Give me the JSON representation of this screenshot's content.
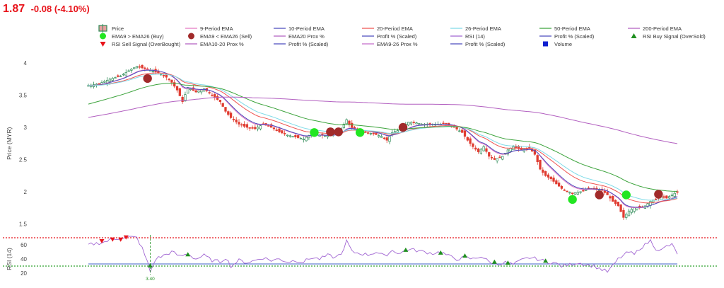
{
  "header": {
    "price": "1.87",
    "change": "-0.08 (-4.10%)"
  },
  "colors": {
    "header_red": "#e8141b",
    "candle_up": "#2e8b57",
    "candle_down": "#e03c31",
    "ema9": "#e377c2",
    "ema10": "#4b4bbd",
    "ema20": "#ef5350",
    "ema26": "#7fdbe8",
    "ema50": "#3ca33c",
    "ema200": "#b25fc0",
    "buy": "#22e622",
    "sell": "#a12a2a",
    "rsi": "#a064d2",
    "rsi_overbought": "#e8141b",
    "rsi_oversold": "#2ca02c",
    "rsi_buy_marker": "#1f8f1f",
    "rsi_sell_marker": "#e8141b",
    "rsi_mid": "#3f63c8"
  },
  "legend": [
    {
      "label": "Price",
      "icon": "candlestick-icon",
      "color": "#2e8b57"
    },
    {
      "label": "9-Period EMA",
      "icon": "line-icon",
      "color": "#e377c2"
    },
    {
      "label": "10-Period EMA",
      "icon": "line-icon",
      "color": "#4b4bbd"
    },
    {
      "label": "20-Period EMA",
      "icon": "line-icon",
      "color": "#ef5350"
    },
    {
      "label": "26-Period EMA",
      "icon": "line-icon",
      "color": "#7fdbe8"
    },
    {
      "label": "50-Period EMA",
      "icon": "line-icon",
      "color": "#3ca33c"
    },
    {
      "label": "200-Period EMA",
      "icon": "line-icon",
      "color": "#b25fc0"
    },
    {
      "label": "EMA9 > EMA26 (Buy)",
      "icon": "circle-icon",
      "color": "#22e622"
    },
    {
      "label": "EMA9 < EMA26 (Sell)",
      "icon": "circle-icon",
      "color": "#a12a2a"
    },
    {
      "label": "EMA20 Prox %",
      "icon": "line-icon",
      "color": "#b25fc0"
    },
    {
      "label": "Profit % (Scaled)",
      "icon": "line-icon",
      "color": "#4b4bbd"
    },
    {
      "label": "RSI (14)",
      "icon": "line-icon",
      "color": "#a064d2"
    },
    {
      "label": "Profit % (Scaled)",
      "icon": "line-icon",
      "color": "#4b4bbd"
    },
    {
      "label": "RSI Buy Signal (OverSold)",
      "icon": "triangle-up-icon",
      "color": "#1f8f1f"
    },
    {
      "label": "RSI Sell Signal (OverBought)",
      "icon": "triangle-down-icon",
      "color": "#e8141b"
    },
    {
      "label": "EMA10-20 Prox %",
      "icon": "line-icon",
      "color": "#b25fc0"
    },
    {
      "label": "Profit % (Scaled)",
      "icon": "line-icon",
      "color": "#4b4bbd"
    },
    {
      "label": "EMA9-26 Prox %",
      "icon": "line-icon",
      "color": "#c46cc9"
    },
    {
      "label": "Profit % (Scaled)",
      "icon": "line-icon",
      "color": "#4b4bbd"
    },
    {
      "label": "Volume",
      "icon": "square-icon",
      "color": "#1020d0"
    }
  ],
  "chart_data": [
    {
      "type": "line",
      "ylabel": "Price (MYR)",
      "ylim": [
        1.35,
        4.1
      ],
      "yticks": [
        1.5,
        2,
        2.5,
        3,
        3.5,
        4
      ],
      "ytick_labels": [
        "1.5",
        "2",
        "2.5",
        "3",
        "3.5",
        "4"
      ],
      "x_count": 220,
      "grid": false,
      "close_anchors": [
        [
          0,
          3.65
        ],
        [
          4,
          3.68
        ],
        [
          8,
          3.75
        ],
        [
          12,
          3.8
        ],
        [
          15,
          3.88
        ],
        [
          18,
          3.95
        ],
        [
          22,
          3.9
        ],
        [
          26,
          3.85
        ],
        [
          29,
          3.78
        ],
        [
          31,
          3.7
        ],
        [
          33,
          3.58
        ],
        [
          35,
          3.4
        ],
        [
          37,
          3.62
        ],
        [
          40,
          3.55
        ],
        [
          43,
          3.6
        ],
        [
          46,
          3.5
        ],
        [
          49,
          3.4
        ],
        [
          51,
          3.25
        ],
        [
          53,
          3.15
        ],
        [
          56,
          3.05
        ],
        [
          59,
          3.0
        ],
        [
          62,
          2.98
        ],
        [
          65,
          3.05
        ],
        [
          68,
          3.0
        ],
        [
          71,
          2.93
        ],
        [
          74,
          2.88
        ],
        [
          77,
          2.85
        ],
        [
          80,
          2.82
        ],
        [
          83,
          2.9
        ],
        [
          86,
          2.88
        ],
        [
          89,
          2.87
        ],
        [
          92,
          2.9
        ],
        [
          94,
          2.98
        ],
        [
          96,
          3.12
        ],
        [
          98,
          2.98
        ],
        [
          100,
          2.93
        ],
        [
          103,
          2.92
        ],
        [
          106,
          2.9
        ],
        [
          109,
          2.86
        ],
        [
          111,
          2.8
        ],
        [
          113,
          2.92
        ],
        [
          115,
          2.95
        ],
        [
          117,
          3.02
        ],
        [
          119,
          3.08
        ],
        [
          121,
          3.08
        ],
        [
          124,
          3.05
        ],
        [
          127,
          3.05
        ],
        [
          130,
          3.05
        ],
        [
          133,
          3.05
        ],
        [
          136,
          3.0
        ],
        [
          139,
          2.92
        ],
        [
          141,
          2.8
        ],
        [
          143,
          2.7
        ],
        [
          145,
          2.62
        ],
        [
          147,
          2.7
        ],
        [
          149,
          2.55
        ],
        [
          151,
          2.5
        ],
        [
          154,
          2.55
        ],
        [
          156,
          2.65
        ],
        [
          158,
          2.7
        ],
        [
          161,
          2.65
        ],
        [
          164,
          2.68
        ],
        [
          166,
          2.58
        ],
        [
          168,
          2.35
        ],
        [
          170,
          2.25
        ],
        [
          172,
          2.2
        ],
        [
          174,
          2.12
        ],
        [
          176,
          2.05
        ],
        [
          178,
          2.0
        ],
        [
          180,
          1.98
        ],
        [
          183,
          2.0
        ],
        [
          186,
          2.05
        ],
        [
          189,
          2.03
        ],
        [
          191,
          2.02
        ],
        [
          193,
          1.95
        ],
        [
          195,
          1.85
        ],
        [
          197,
          1.78
        ],
        [
          199,
          1.6
        ],
        [
          201,
          1.7
        ],
        [
          203,
          1.75
        ],
        [
          205,
          1.75
        ],
        [
          207,
          1.78
        ],
        [
          209,
          1.85
        ],
        [
          211,
          1.88
        ],
        [
          213,
          1.92
        ],
        [
          215,
          1.9
        ],
        [
          217,
          1.95
        ],
        [
          219,
          2.0
        ]
      ],
      "buy_signals": [
        [
          84,
          2.92
        ],
        [
          101,
          2.92
        ],
        [
          180,
          1.88
        ],
        [
          200,
          1.95
        ]
      ],
      "sell_signals": [
        [
          22,
          3.76
        ],
        [
          90,
          2.93
        ],
        [
          93,
          2.93
        ],
        [
          117,
          3.0
        ],
        [
          190,
          1.95
        ],
        [
          212,
          1.96
        ]
      ],
      "series": [
        {
          "name": "9-Period EMA",
          "span": 9,
          "color_key": "ema9"
        },
        {
          "name": "10-Period EMA",
          "span": 10,
          "color_key": "ema10"
        },
        {
          "name": "20-Period EMA",
          "span": 20,
          "color_key": "ema20"
        },
        {
          "name": "26-Period EMA",
          "span": 26,
          "color_key": "ema26"
        },
        {
          "name": "50-Period EMA",
          "span": 50,
          "color_key": "ema50"
        },
        {
          "name": "200-Period EMA",
          "span": 200,
          "color_key": "ema200"
        }
      ]
    },
    {
      "type": "line",
      "ylabel": "RSI (14)",
      "ylim": [
        16,
        76
      ],
      "yticks": [
        20,
        40,
        60
      ],
      "ytick_labels": [
        "20",
        "40",
        "60"
      ],
      "overbought": 70,
      "oversold": 30,
      "mid_line": 33,
      "annotation": {
        "x": 23,
        "text": "3.40"
      },
      "rsi_anchors": [
        [
          0,
          60
        ],
        [
          3,
          62
        ],
        [
          6,
          64
        ],
        [
          9,
          68
        ],
        [
          12,
          70
        ],
        [
          15,
          71
        ],
        [
          18,
          70
        ],
        [
          20,
          55
        ],
        [
          21,
          45
        ],
        [
          22,
          35
        ],
        [
          23,
          22
        ],
        [
          25,
          40
        ],
        [
          28,
          45
        ],
        [
          31,
          50
        ],
        [
          34,
          44
        ],
        [
          37,
          47
        ],
        [
          40,
          40
        ],
        [
          43,
          45
        ],
        [
          46,
          38
        ],
        [
          49,
          36
        ],
        [
          51,
          42
        ],
        [
          53,
          30
        ],
        [
          56,
          38
        ],
        [
          59,
          35
        ],
        [
          62,
          38
        ],
        [
          65,
          42
        ],
        [
          68,
          38
        ],
        [
          71,
          40
        ],
        [
          74,
          36
        ],
        [
          77,
          38
        ],
        [
          80,
          36
        ],
        [
          83,
          42
        ],
        [
          86,
          40
        ],
        [
          89,
          45
        ],
        [
          92,
          42
        ],
        [
          95,
          52
        ],
        [
          96,
          66
        ],
        [
          98,
          50
        ],
        [
          101,
          48
        ],
        [
          104,
          46
        ],
        [
          107,
          50
        ],
        [
          110,
          44
        ],
        [
          113,
          52
        ],
        [
          116,
          48
        ],
        [
          119,
          54
        ],
        [
          122,
          52
        ],
        [
          125,
          50
        ],
        [
          128,
          48
        ],
        [
          131,
          50
        ],
        [
          134,
          44
        ],
        [
          137,
          40
        ],
        [
          140,
          42
        ],
        [
          143,
          40
        ],
        [
          146,
          44
        ],
        [
          149,
          36
        ],
        [
          152,
          33
        ],
        [
          155,
          35
        ],
        [
          158,
          32
        ],
        [
          161,
          38
        ],
        [
          164,
          42
        ],
        [
          167,
          40
        ],
        [
          170,
          36
        ],
        [
          173,
          35
        ],
        [
          176,
          30
        ],
        [
          179,
          32
        ],
        [
          182,
          35
        ],
        [
          185,
          32
        ],
        [
          188,
          30
        ],
        [
          191,
          25
        ],
        [
          193,
          22
        ],
        [
          195,
          30
        ],
        [
          197,
          40
        ],
        [
          199,
          45
        ],
        [
          201,
          50
        ],
        [
          203,
          46
        ],
        [
          205,
          55
        ],
        [
          207,
          60
        ],
        [
          209,
          66
        ],
        [
          211,
          55
        ],
        [
          213,
          52
        ],
        [
          215,
          58
        ],
        [
          217,
          60
        ],
        [
          219,
          48
        ]
      ],
      "buy_signals": [
        23,
        37,
        118,
        131,
        140,
        151,
        156,
        170
      ],
      "sell_signals": [
        5,
        9,
        12,
        14
      ]
    }
  ]
}
